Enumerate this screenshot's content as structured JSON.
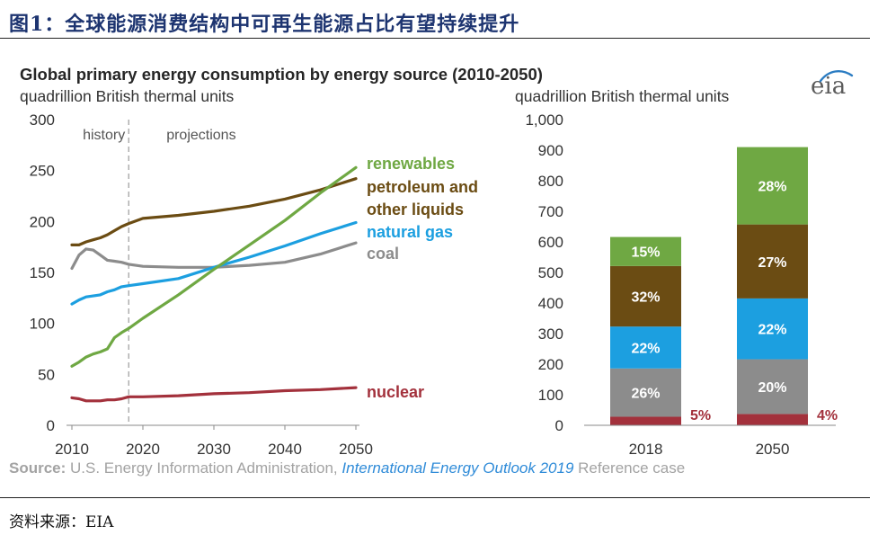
{
  "header": {
    "title": "图1：全球能源消费结构中可再生能源占比有望持续提升",
    "color": "#1d3470"
  },
  "figure": {
    "title": "Global primary energy consumption by energy source (2010-2050)",
    "logo": "eia"
  },
  "chart_data": [
    {
      "type": "line",
      "ylabel": "quadrillion British thermal units",
      "xlim": [
        2010,
        2050
      ],
      "ylim": [
        0,
        300
      ],
      "x_ticks": [
        2010,
        2020,
        2030,
        2040,
        2050
      ],
      "y_ticks": [
        0,
        50,
        100,
        150,
        200,
        250,
        300
      ],
      "grid": false,
      "divider_x": 2018,
      "annotations": [
        "history",
        "projections"
      ],
      "x": [
        2010,
        2011,
        2012,
        2013,
        2014,
        2015,
        2016,
        2017,
        2018,
        2020,
        2025,
        2030,
        2035,
        2040,
        2045,
        2050
      ],
      "series": [
        {
          "label": [
            "renewables"
          ],
          "color": "#6fa843",
          "values": [
            58,
            62,
            67,
            70,
            72,
            75,
            86,
            91,
            95,
            105,
            128,
            153,
            177,
            201,
            228,
            253
          ]
        },
        {
          "label": [
            "petroleum and",
            "other liquids"
          ],
          "color": "#6b4c13",
          "values": [
            177,
            177,
            180,
            182,
            184,
            187,
            191,
            195,
            198,
            203,
            206,
            210,
            215,
            222,
            231,
            242
          ]
        },
        {
          "label": [
            "natural gas"
          ],
          "color": "#1c9fe0",
          "values": [
            119,
            123,
            126,
            127,
            128,
            131,
            133,
            136,
            137,
            139,
            144,
            155,
            165,
            176,
            188,
            199
          ]
        },
        {
          "label": [
            "coal"
          ],
          "color": "#8c8c8c",
          "values": [
            154,
            167,
            173,
            172,
            167,
            162,
            161,
            160,
            158,
            156,
            155,
            155,
            157,
            160,
            168,
            179
          ]
        },
        {
          "label": [
            "nuclear"
          ],
          "color": "#a3313c",
          "values": [
            27,
            26,
            24,
            24,
            24,
            25,
            25,
            26,
            28,
            28,
            29,
            31,
            32,
            34,
            35,
            37
          ]
        }
      ]
    },
    {
      "type": "bar",
      "stacked": true,
      "ylabel": "quadrillion British thermal units",
      "ylim": [
        0,
        1000
      ],
      "y_ticks": [
        0,
        100,
        200,
        300,
        400,
        500,
        600,
        700,
        800,
        900,
        1000
      ],
      "grid": false,
      "categories": [
        "2018",
        "2050"
      ],
      "series": [
        {
          "label": [
            "nuclear"
          ],
          "color": "#a3313c",
          "values": [
            28,
            37
          ],
          "value_labels": [
            "5%",
            "4%"
          ]
        },
        {
          "label": [
            "coal"
          ],
          "color": "#8c8c8c",
          "values": [
            158,
            179
          ],
          "value_labels": [
            "26%",
            "20%"
          ]
        },
        {
          "label": [
            "natural gas"
          ],
          "color": "#1c9fe0",
          "values": [
            137,
            199
          ],
          "value_labels": [
            "22%",
            "22%"
          ]
        },
        {
          "label": [
            "petroleum and",
            "other liquids"
          ],
          "color": "#6b4c13",
          "values": [
            198,
            242
          ],
          "value_labels": [
            "32%",
            "27%"
          ]
        },
        {
          "label": [
            "renewables"
          ],
          "color": "#6fa843",
          "values": [
            95,
            253
          ],
          "value_labels": [
            "15%",
            "28%"
          ]
        }
      ]
    }
  ],
  "source": {
    "label": "Source:",
    "agency": " U.S. Energy Information Administration, ",
    "publication": "International Energy Outlook 2019",
    "case": " Reference case"
  },
  "footer": {
    "text": "资料来源：EIA"
  }
}
